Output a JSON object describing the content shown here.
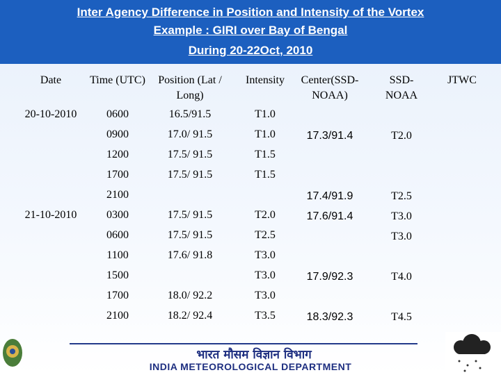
{
  "header": {
    "lines": [
      "Inter Agency Difference in Position and Intensity of the Vortex",
      "Example : GIRI over Bay of Bengal",
      "During 20-22Oct, 2010"
    ]
  },
  "table": {
    "columns": [
      "Date",
      "Time (UTC)",
      "Position (Lat / Long)",
      "Intensity",
      "Center(SSD-NOAA)",
      "SSD-NOAA",
      "JTWC"
    ],
    "rows": [
      [
        "20-10-2010",
        "0600",
        "16.5/91.5",
        "T1.0",
        null,
        null,
        null
      ],
      [
        null,
        "0900",
        "17.0/ 91.5",
        "T1.0",
        "17.3/91.4",
        "T2.0",
        null
      ],
      [
        null,
        "1200",
        "17.5/ 91.5",
        "T1.5",
        null,
        null,
        null
      ],
      [
        null,
        "1700",
        "17.5/ 91.5",
        "T1.5",
        null,
        null,
        null
      ],
      [
        null,
        "2100",
        null,
        null,
        "17.4/91.9",
        "T2.5",
        null
      ],
      [
        "21-10-2010",
        "0300",
        "17.5/ 91.5",
        "T2.0",
        "17.6/91.4",
        "T3.0",
        null
      ],
      [
        null,
        "0600",
        "17.5/ 91.5",
        "T2.5",
        null,
        "T3.0",
        null
      ],
      [
        null,
        "1100",
        "17.6/ 91.8",
        "T3.0",
        null,
        null,
        null
      ],
      [
        null,
        "1500",
        null,
        "T3.0",
        "17.9/92.3",
        "T4.0",
        null
      ],
      [
        null,
        "1700",
        "18.0/ 92.2",
        "T3.0",
        null,
        null,
        null
      ],
      [
        null,
        "2100",
        "18.2/ 92.4",
        "T3.5",
        "18.3/92.3",
        "T4.5",
        null
      ]
    ]
  },
  "footer": {
    "hindi": "भारत मौसम विज्ञान विभाग",
    "english": "INDIA METEOROLOGICAL DEPARTMENT"
  }
}
